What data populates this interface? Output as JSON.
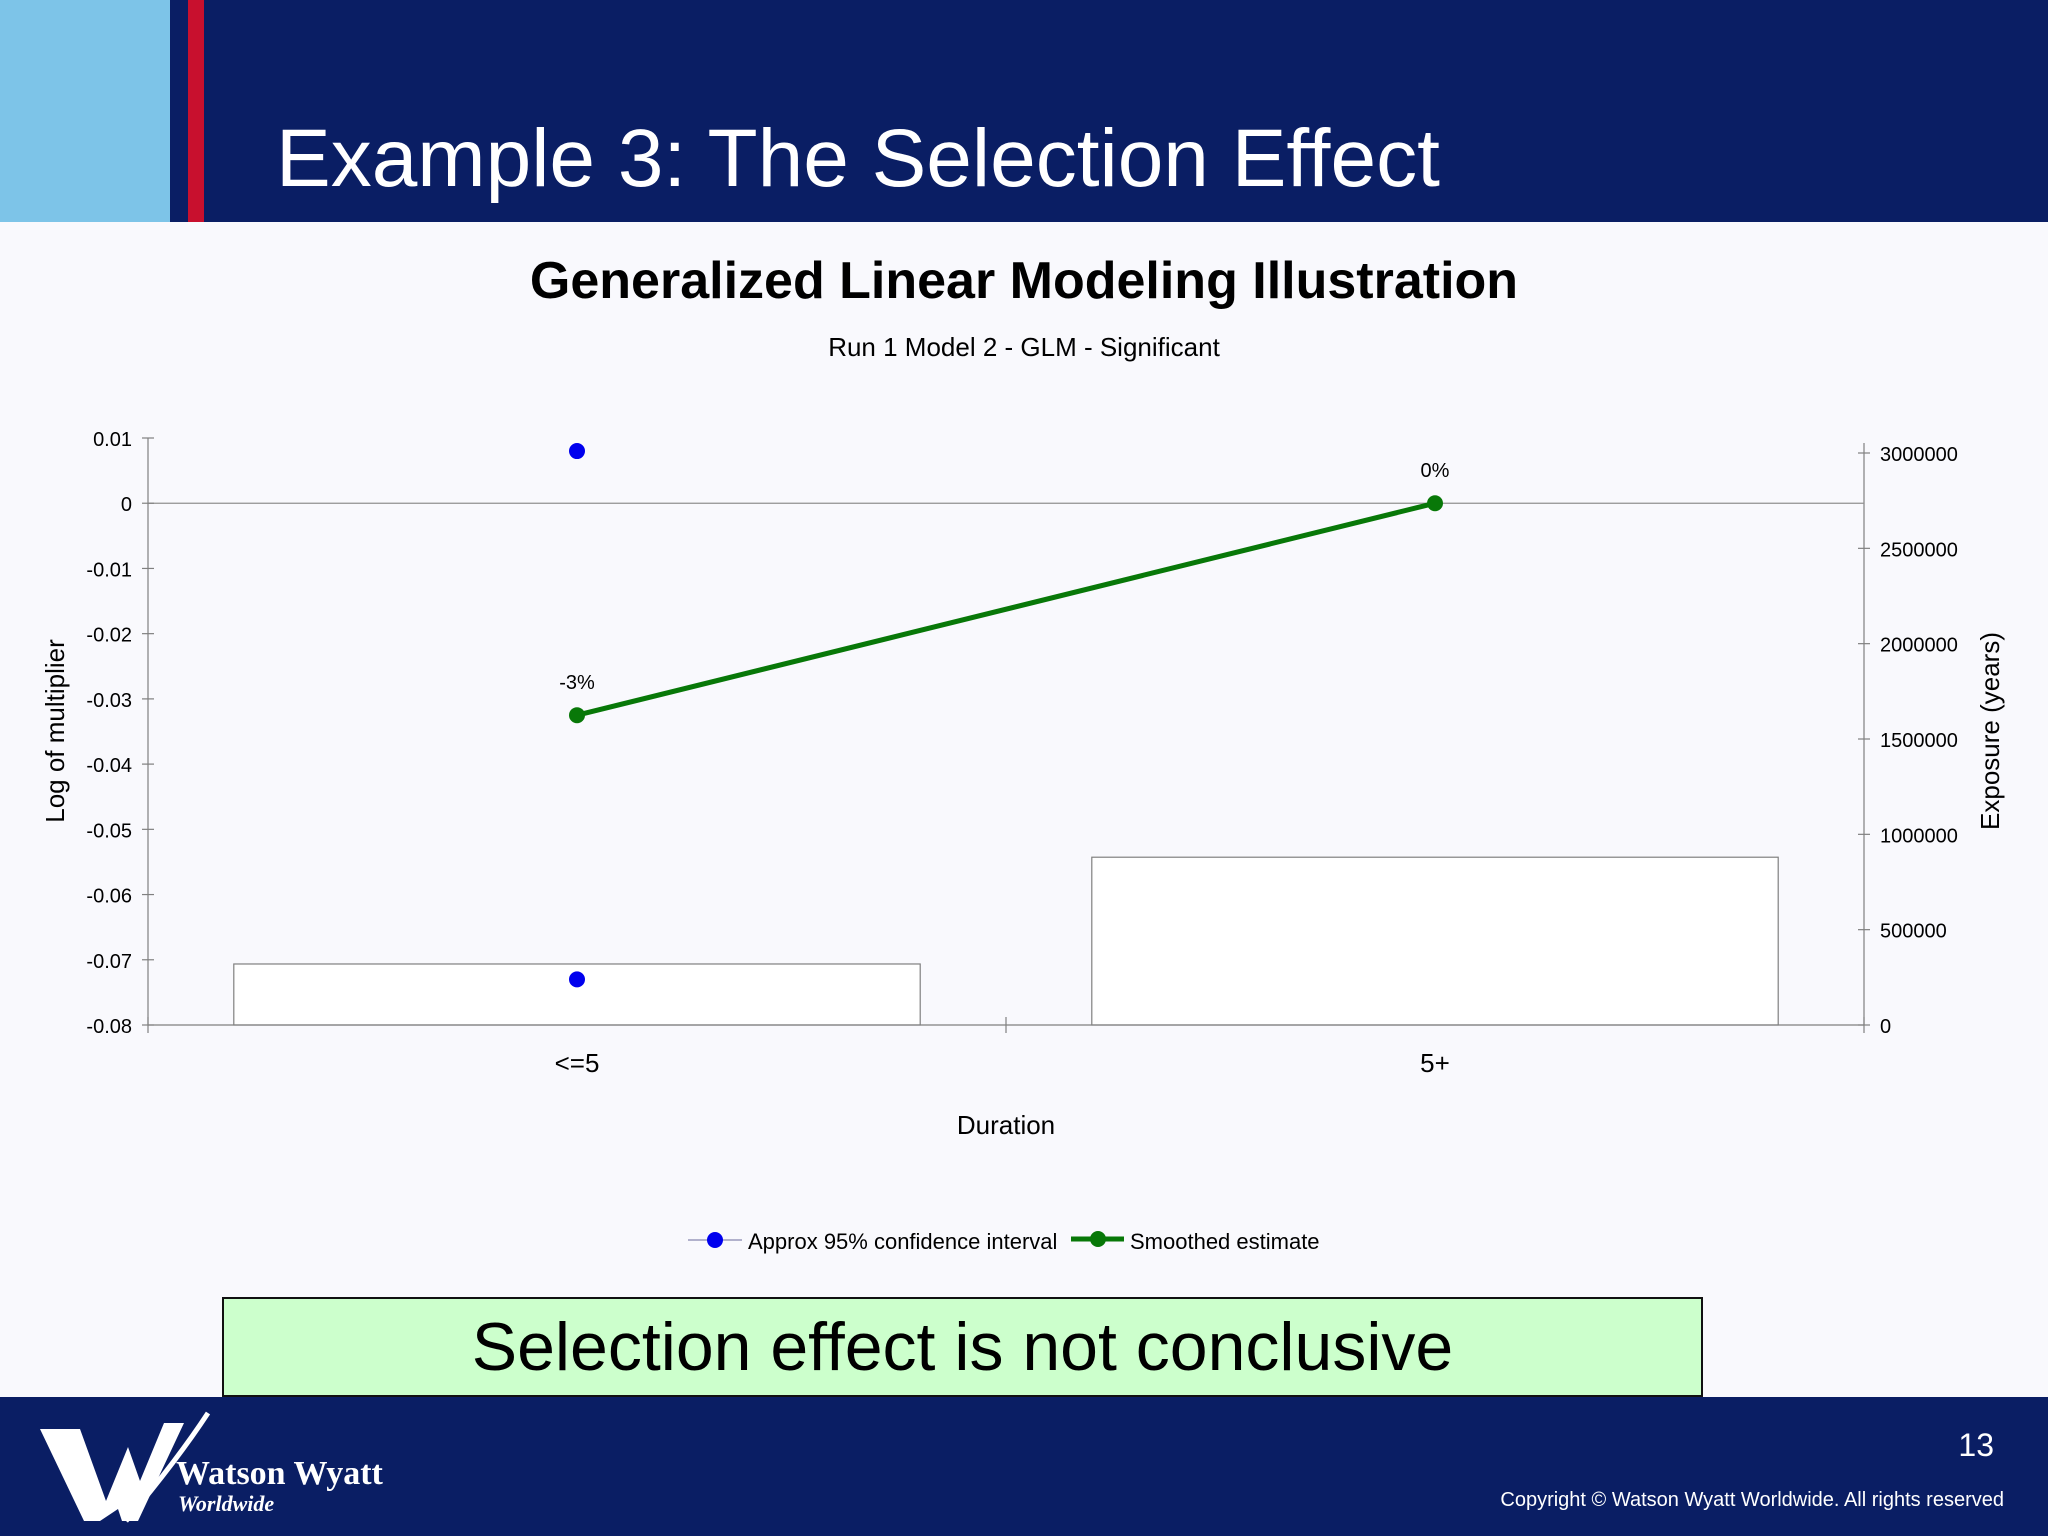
{
  "slide": {
    "title": "Example 3: The Selection Effect",
    "callout": "Selection effect is not conclusive",
    "page_number": "13",
    "copyright": "Copyright © Watson Wyatt Worldwide. All rights reserved",
    "logo": {
      "name": "Watson Wyatt",
      "sub": "Worldwide"
    }
  },
  "colors": {
    "header_bg": "#0a1e64",
    "accent_light_blue": "#7dc4e8",
    "accent_red": "#c8102e",
    "callout_bg": "#ccffcc",
    "ci_points": "#0000ee",
    "smoothed_line": "#087808"
  },
  "chart_data": {
    "type": "line",
    "title": "Generalized Linear Modeling Illustration",
    "subtitle": "Run 1 Model 2 - GLM - Significant",
    "xlabel": "Duration",
    "ylabel": "Log of multiplier",
    "y2label": "Exposure (years)",
    "categories": [
      "<=5",
      "5+"
    ],
    "ylim": [
      -0.08,
      0.01
    ],
    "y_ticks": [
      "0.01",
      "0",
      "-0.01",
      "-0.02",
      "-0.03",
      "-0.04",
      "-0.05",
      "-0.06",
      "-0.07",
      "-0.08"
    ],
    "y2lim": [
      0,
      3000000
    ],
    "y2_ticks": [
      "3000000",
      "2500000",
      "2000000",
      "1500000",
      "1000000",
      "500000",
      "0"
    ],
    "grid": false,
    "legend_position": "bottom",
    "series": [
      {
        "name": "Approx 95% confidence interval",
        "kind": "points",
        "upper": [
          0.008,
          null
        ],
        "lower": [
          -0.073,
          null
        ]
      },
      {
        "name": "Smoothed estimate",
        "kind": "line",
        "values": [
          -0.0325,
          0.0
        ],
        "labels": [
          "-3%",
          "0%"
        ]
      },
      {
        "kind": "bar",
        "axis": "secondary",
        "values": [
          320000,
          880000
        ]
      }
    ]
  }
}
